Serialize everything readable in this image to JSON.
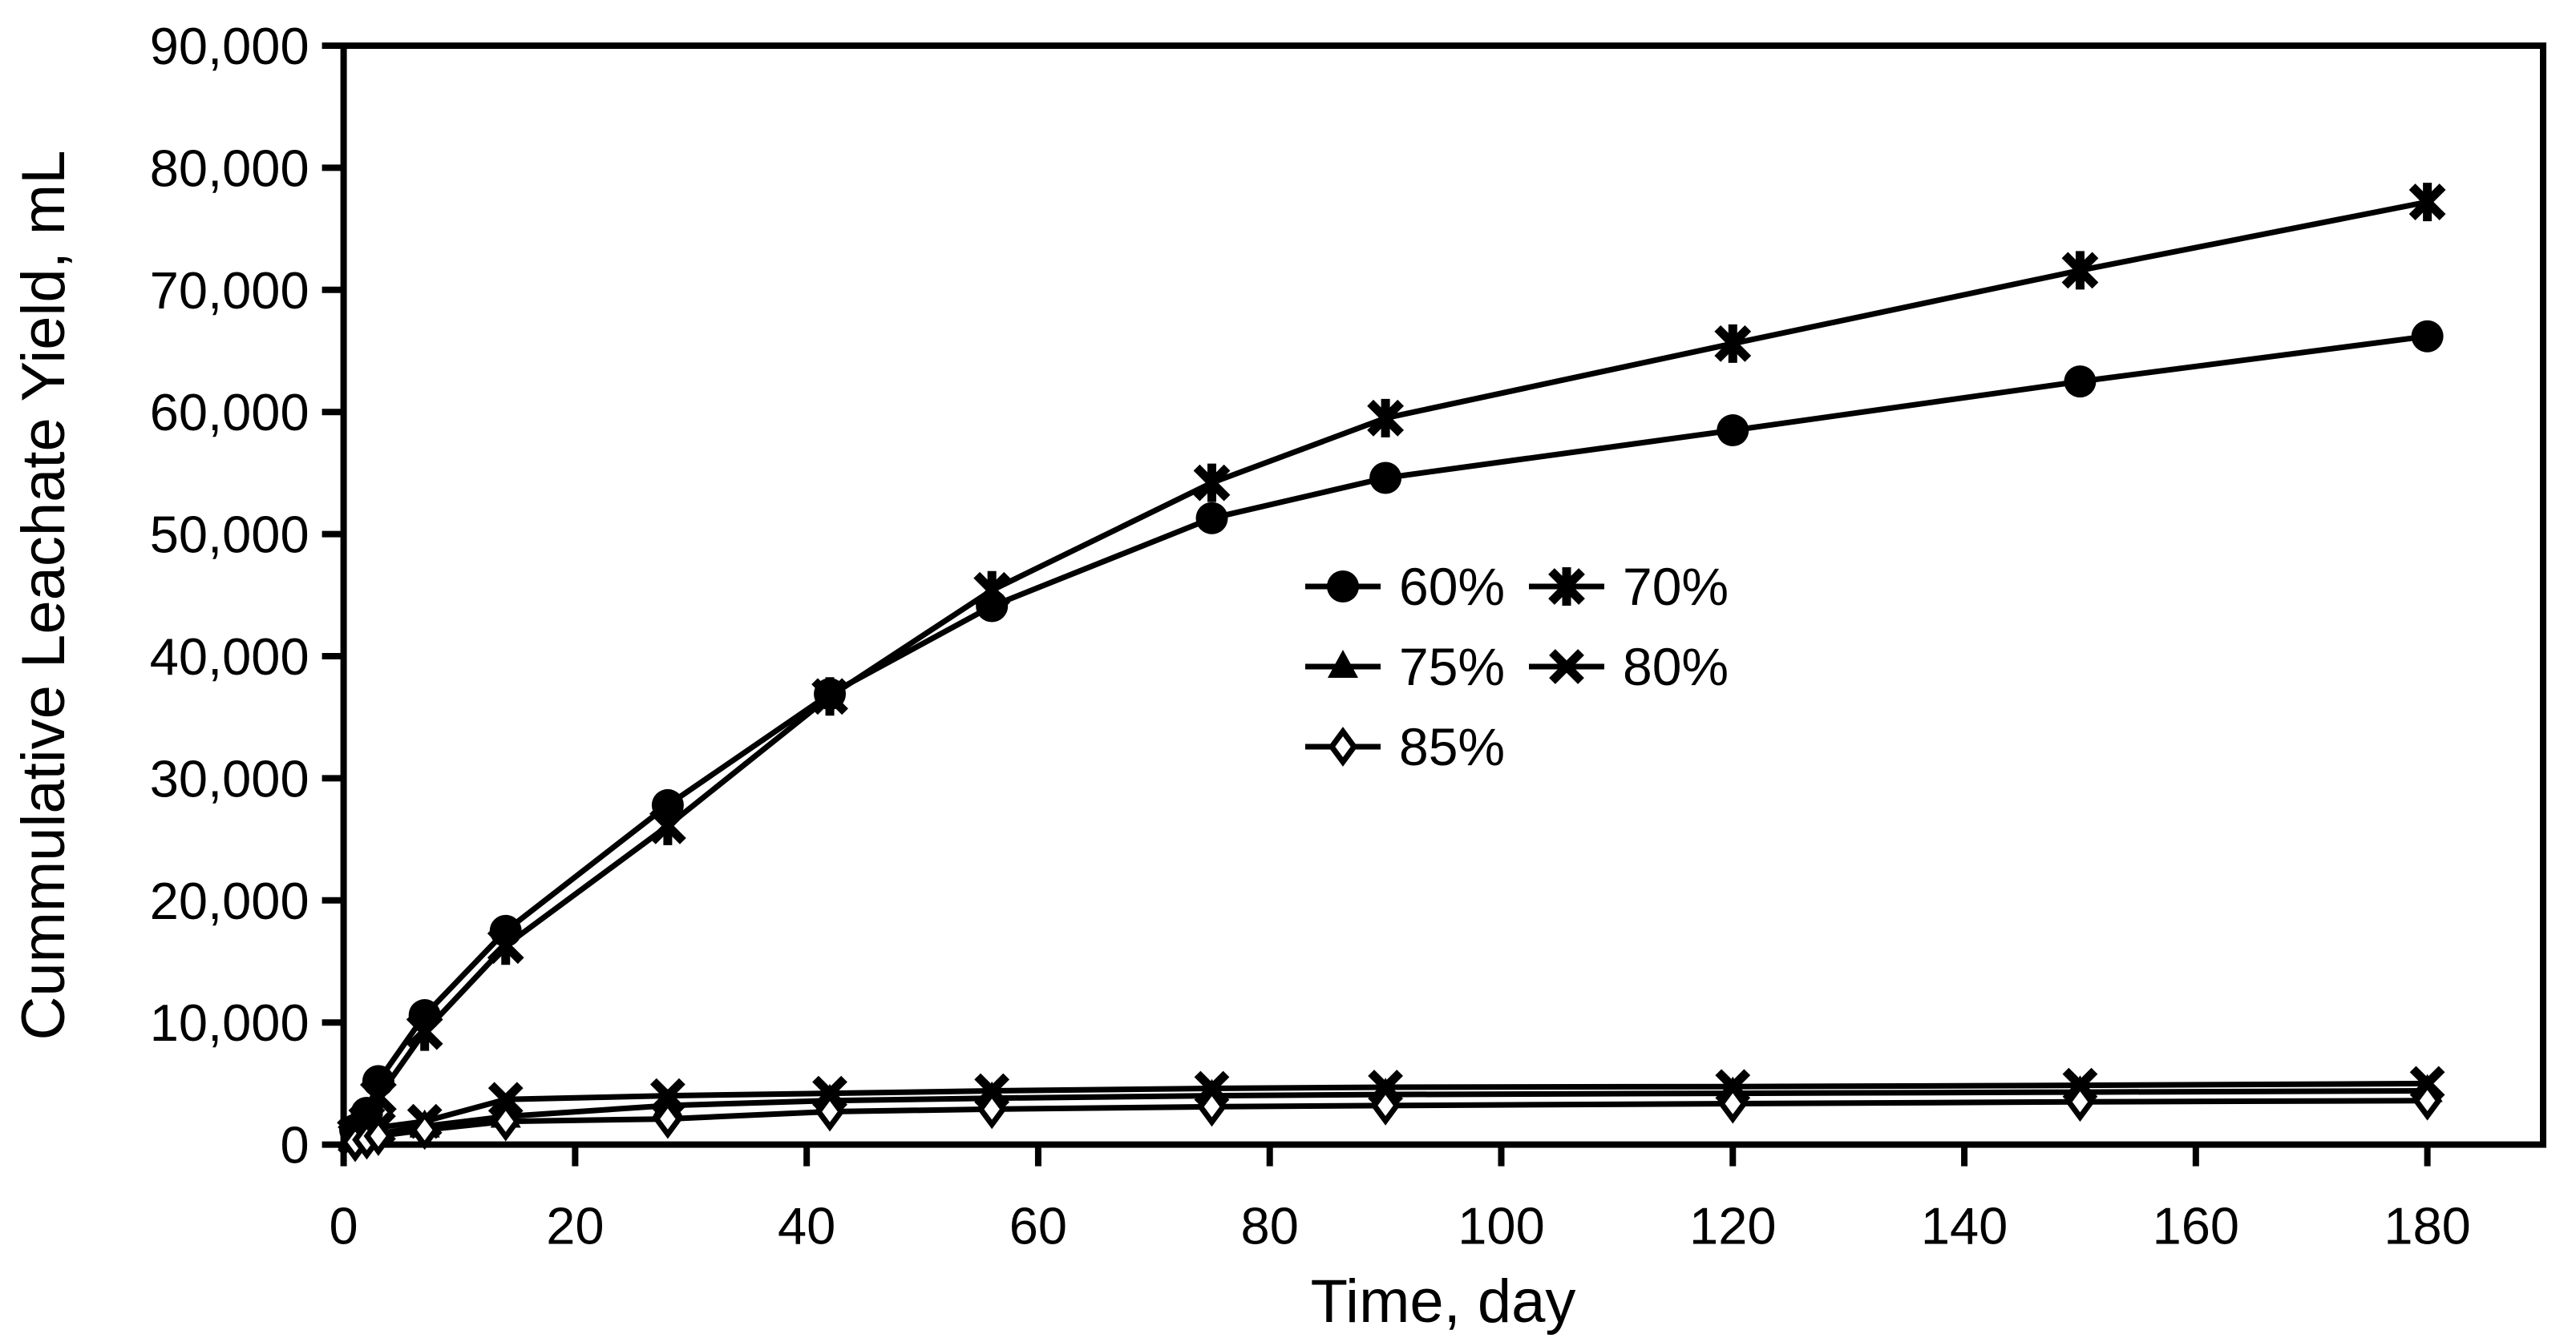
{
  "chart_data": {
    "type": "line",
    "title": "",
    "xlabel": "Time, day",
    "ylabel": "Cummulative Leachate Yield, mL",
    "xlim": [
      0,
      190
    ],
    "ylim": [
      0,
      90000
    ],
    "grid": false,
    "background_color": "#ffffff",
    "foreground_color": "#000000",
    "x_tick_values": [
      0,
      20,
      40,
      60,
      80,
      100,
      120,
      140,
      160,
      180
    ],
    "x_tick_labels": [
      "0",
      "20",
      "40",
      "60",
      "80",
      "100",
      "120",
      "140",
      "160",
      "180"
    ],
    "y_tick_values": [
      0,
      10000,
      20000,
      30000,
      40000,
      50000,
      60000,
      70000,
      80000,
      90000
    ],
    "y_tick_labels": [
      "0",
      "10,000",
      "20,000",
      "30,000",
      "40,000",
      "50,000",
      "60,000",
      "70,000",
      "80,000",
      "90,000"
    ],
    "x": [
      1,
      2,
      3,
      7,
      14,
      28,
      42,
      56,
      75,
      90,
      120,
      150,
      180
    ],
    "series": [
      {
        "name": "60%",
        "marker": "circle",
        "values": [
          1200,
          2600,
          5200,
          10600,
          17500,
          27800,
          36900,
          44100,
          51300,
          54600,
          58500,
          62500,
          66200
        ]
      },
      {
        "name": "70%",
        "marker": "asterisk",
        "values": [
          800,
          1800,
          3900,
          9250,
          16300,
          26100,
          36700,
          45400,
          54200,
          59500,
          65600,
          71600,
          77200
        ]
      },
      {
        "name": "75%",
        "marker": "triangle",
        "values": [
          300,
          600,
          900,
          1500,
          2300,
          3200,
          3600,
          3800,
          4000,
          4100,
          4200,
          4300,
          4400
        ]
      },
      {
        "name": "80%",
        "marker": "x",
        "values": [
          500,
          1000,
          1400,
          1900,
          3700,
          4000,
          4200,
          4400,
          4600,
          4700,
          4750,
          4850,
          5000
        ]
      },
      {
        "name": "85%",
        "marker": "diamond",
        "values": [
          200,
          400,
          700,
          1200,
          1900,
          2100,
          2700,
          2900,
          3100,
          3200,
          3350,
          3500,
          3600
        ]
      }
    ],
    "legend": {
      "columns": 2,
      "position": "inside-center-right",
      "items": [
        {
          "label": "60%",
          "marker": "circle"
        },
        {
          "label": "70%",
          "marker": "asterisk"
        },
        {
          "label": "75%",
          "marker": "triangle"
        },
        {
          "label": "80%",
          "marker": "x"
        },
        {
          "label": "85%",
          "marker": "diamond"
        }
      ]
    }
  }
}
